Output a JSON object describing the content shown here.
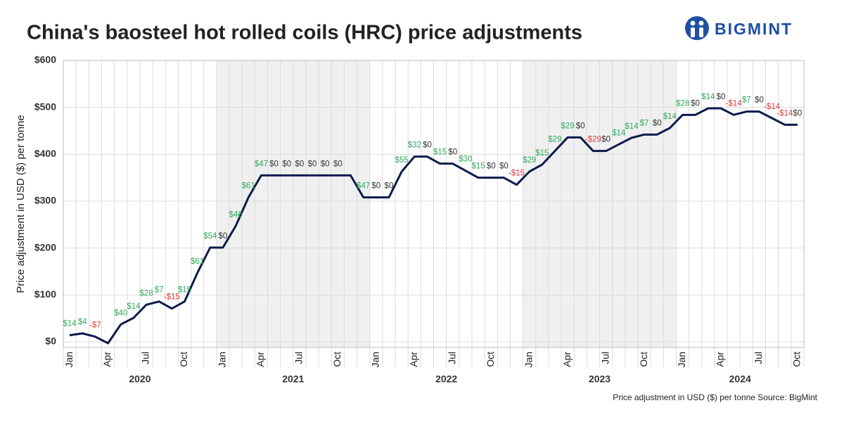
{
  "brand": "BIGMINT",
  "chart_data": {
    "type": "line",
    "title": "China's baosteel hot rolled coils (HRC) price adjustments",
    "y_label": "Price adjustment in USD ($) per tonne",
    "source": "Price adjustment in USD ($) per tonne Source: BigMint",
    "color": "#0d1b4c",
    "positive_color": "#2eaa5a",
    "negative_color": "#e03c3c",
    "zero_color": "#333333",
    "ylim": [
      -12,
      600
    ],
    "yticks": [
      {
        "value": 0,
        "label": "$0"
      },
      {
        "value": 100,
        "label": "$100"
      },
      {
        "value": 200,
        "label": "$200"
      },
      {
        "value": 300,
        "label": "$300"
      },
      {
        "value": 400,
        "label": "$400"
      },
      {
        "value": 500,
        "label": "$500"
      },
      {
        "value": 600,
        "label": "$600"
      }
    ],
    "grid": true,
    "years": [
      "2020",
      "2021",
      "2022",
      "2023",
      "2024"
    ],
    "categories": [
      "Jan",
      null,
      null,
      "Apr",
      null,
      null,
      "Jul",
      null,
      null,
      "Oct",
      null,
      null,
      "Jan",
      null,
      null,
      "Apr",
      null,
      null,
      "Jul",
      null,
      null,
      "Oct",
      null,
      null,
      "Jan",
      null,
      null,
      "Apr",
      null,
      null,
      "Jul",
      null,
      null,
      "Oct",
      null,
      null,
      "Jan",
      null,
      null,
      "Apr",
      null,
      null,
      "Jul",
      null,
      null,
      "Oct",
      null,
      null,
      "Jan",
      null,
      null,
      "Apr",
      null,
      null,
      "Jul",
      null,
      null,
      "Oct"
    ],
    "values": [
      14,
      18,
      11,
      -3,
      37,
      51,
      79,
      86,
      71,
      86,
      147,
      201,
      201,
      247,
      308,
      355,
      355,
      355,
      355,
      355,
      355,
      355,
      355,
      308,
      308,
      308,
      363,
      395,
      395,
      380,
      380,
      365,
      350,
      350,
      350,
      335,
      363,
      378,
      407,
      436,
      436,
      407,
      407,
      421,
      435,
      442,
      442,
      456,
      484,
      484,
      498,
      498,
      484,
      491,
      491,
      477,
      463,
      463
    ],
    "adjustments": [
      14,
      4,
      -7,
      null,
      40,
      14,
      28,
      7,
      -15,
      15,
      61,
      54,
      0,
      46,
      61,
      47,
      0,
      0,
      0,
      0,
      0,
      0,
      null,
      47,
      0,
      0,
      55,
      32,
      0,
      15,
      0,
      30,
      15,
      0,
      0,
      -15,
      29,
      15,
      29,
      29,
      0,
      -29,
      0,
      14,
      14,
      7,
      0,
      14,
      28,
      0,
      14,
      0,
      -14,
      7,
      0,
      -14,
      -14,
      0
    ],
    "adjustment_labels": [
      "$14",
      "$4",
      "-$7",
      null,
      "$40",
      "$14",
      "$28",
      "$7",
      "-$15",
      "$15",
      "$61",
      "$54",
      "$0",
      "$46",
      "$61",
      "$47",
      "$0",
      "$0",
      "$0",
      "$0",
      "$0",
      "$0",
      null,
      "$47",
      "$0",
      "$0",
      "$55",
      "$32",
      "$0",
      "$15",
      "$0",
      "$30",
      "$15",
      "$0",
      "$0",
      "-$15",
      "$29",
      "$15",
      "$29",
      "$29",
      "$0",
      "-$29",
      "$0",
      "$14",
      "$14",
      "$7",
      "$0",
      "$14",
      "$28",
      "$0",
      "$14",
      "$0",
      "-$14",
      "$7",
      "$0",
      "-$14",
      "-$14",
      "$0"
    ]
  }
}
